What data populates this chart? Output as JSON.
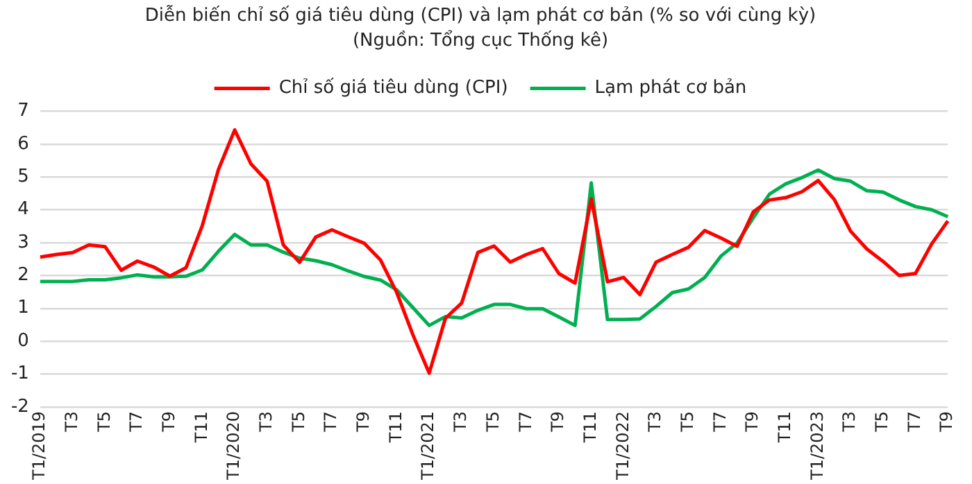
{
  "chart_data": {
    "type": "line",
    "title": "Diễn biến chỉ số giá tiêu dùng (CPI) và lạm phát cơ bản (% so với cùng kỳ)",
    "subtitle": "(Nguồn: Tổng cục Thống kê)",
    "categories": [
      "T1/2019",
      null,
      "T3",
      null,
      "T5",
      null,
      "T7",
      null,
      "T9",
      null,
      "T11",
      null,
      "T1/2020",
      null,
      "T3",
      null,
      "T5",
      null,
      "T7",
      null,
      "T9",
      null,
      "T11",
      null,
      "T1/2021",
      null,
      "T3",
      null,
      "T5",
      null,
      "T7",
      null,
      "T9",
      null,
      "T11",
      null,
      "T1/2022",
      null,
      "T3",
      null,
      "T5",
      null,
      "T7",
      null,
      "T9",
      null,
      "T11",
      null,
      "T1/2023",
      null,
      "T3",
      null,
      "T5",
      null,
      "T7",
      null,
      "T9"
    ],
    "series": [
      {
        "name": "Chỉ số giá tiêu dùng (CPI)",
        "color": "#ff0000",
        "values": [
          2.56,
          2.64,
          2.7,
          2.93,
          2.88,
          2.16,
          2.44,
          2.26,
          1.98,
          2.24,
          3.52,
          5.23,
          6.43,
          5.4,
          4.87,
          2.93,
          2.4,
          3.17,
          3.39,
          3.18,
          2.98,
          2.47,
          1.48,
          0.19,
          -0.97,
          0.7,
          1.16,
          2.7,
          2.9,
          2.41,
          2.64,
          2.82,
          2.06,
          1.77,
          4.33,
          1.81,
          1.94,
          1.42,
          2.41,
          2.64,
          2.86,
          3.37,
          3.14,
          2.89,
          3.94,
          4.3,
          4.37,
          4.55,
          4.89,
          4.31,
          3.35,
          2.81,
          2.43,
          2.0,
          2.06,
          2.96,
          3.66
        ]
      },
      {
        "name": "Lạm phát cơ bản",
        "color": "#00b050",
        "values": [
          1.82,
          1.82,
          1.82,
          1.87,
          1.87,
          1.93,
          2.02,
          1.96,
          1.96,
          1.98,
          2.17,
          2.74,
          3.25,
          2.93,
          2.93,
          2.71,
          2.53,
          2.45,
          2.33,
          2.14,
          1.97,
          1.86,
          1.56,
          1.02,
          0.48,
          0.75,
          0.71,
          0.94,
          1.12,
          1.12,
          0.99,
          0.99,
          0.74,
          0.48,
          4.82,
          0.66,
          0.66,
          0.68,
          1.06,
          1.48,
          1.59,
          1.94,
          2.59,
          2.99,
          3.76,
          4.48,
          4.79,
          4.98,
          5.21,
          4.95,
          4.87,
          4.58,
          4.54,
          4.3,
          4.1,
          4.0,
          3.79
        ]
      }
    ],
    "ylim": [
      -2,
      7
    ],
    "yticks": [
      -2,
      -1,
      0,
      1,
      2,
      3,
      4,
      5,
      6,
      7
    ],
    "grid": "y",
    "legend": "top",
    "marker": "none",
    "line_style": "solid"
  }
}
